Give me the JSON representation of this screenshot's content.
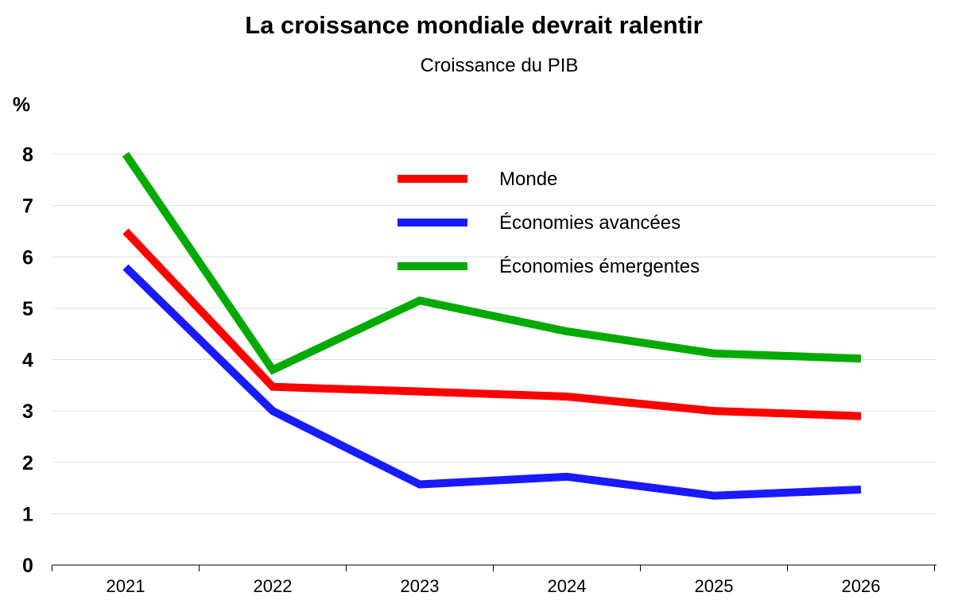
{
  "chart_data": {
    "type": "line",
    "title": "La croissance mondiale devrait ralentir",
    "subtitle": "Croissance du PIB",
    "ylabel": "%",
    "xlabel": "",
    "categories": [
      "2021",
      "2022",
      "2023",
      "2024",
      "2025",
      "2026"
    ],
    "ylim": [
      0,
      8
    ],
    "yticks": [
      "0",
      "1",
      "2",
      "3",
      "4",
      "5",
      "6",
      "7",
      "8"
    ],
    "grid": true,
    "legend_position": "top-center",
    "series": [
      {
        "name": "Monde",
        "color": "#ff0000",
        "values": [
          6.5,
          3.47,
          3.38,
          3.28,
          3.0,
          2.9
        ]
      },
      {
        "name": "Économies avancées",
        "color": "#1a1aff",
        "values": [
          5.8,
          3.0,
          1.57,
          1.72,
          1.35,
          1.47
        ]
      },
      {
        "name": "Économies émergentes",
        "color": "#00aa00",
        "values": [
          8.0,
          3.8,
          5.15,
          4.55,
          4.12,
          4.02
        ]
      }
    ]
  }
}
